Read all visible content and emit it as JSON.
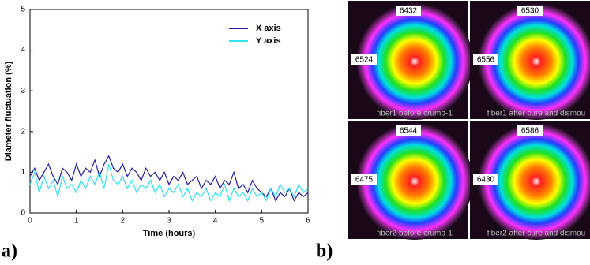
{
  "chart_data": {
    "type": "line",
    "xlabel": "Time (hours)",
    "ylabel": "Diameter fluctuation (%)",
    "x": [
      0,
      0.1,
      0.2,
      0.3,
      0.4,
      0.5,
      0.6,
      0.7,
      0.8,
      0.9,
      1,
      1.1,
      1.2,
      1.3,
      1.4,
      1.5,
      1.6,
      1.7,
      1.8,
      1.9,
      2,
      2.1,
      2.2,
      2.3,
      2.4,
      2.5,
      2.6,
      2.7,
      2.8,
      2.9,
      3,
      3.1,
      3.2,
      3.3,
      3.4,
      3.5,
      3.6,
      3.7,
      3.8,
      3.9,
      4,
      4.1,
      4.2,
      4.3,
      4.4,
      4.5,
      4.6,
      4.7,
      4.8,
      4.9,
      5,
      5.1,
      5.2,
      5.3,
      5.4,
      5.5,
      5.6,
      5.7,
      5.8,
      5.9,
      6
    ],
    "series": [
      {
        "name": "X axis",
        "color": "#1f1fa0",
        "values": [
          0.9,
          1.1,
          0.8,
          1.0,
          1.2,
          0.9,
          0.7,
          1.1,
          1.0,
          0.8,
          1.2,
          0.9,
          1.1,
          1.0,
          1.3,
          0.9,
          1.2,
          1.4,
          1.1,
          1.0,
          1.2,
          0.9,
          1.1,
          1.0,
          0.8,
          1.1,
          0.9,
          1.0,
          0.8,
          1.0,
          0.7,
          0.9,
          0.8,
          1.0,
          0.7,
          0.8,
          0.9,
          0.6,
          0.8,
          0.7,
          0.9,
          0.6,
          0.8,
          0.7,
          1.0,
          0.6,
          0.7,
          0.5,
          0.8,
          0.6,
          0.5,
          0.4,
          0.6,
          0.3,
          0.5,
          0.4,
          0.6,
          0.3,
          0.5,
          0.4,
          0.5
        ]
      },
      {
        "name": "Y axis",
        "color": "#33e0f0",
        "values": [
          0.7,
          1.0,
          0.5,
          0.9,
          0.6,
          0.8,
          0.4,
          0.9,
          0.6,
          0.7,
          0.5,
          0.8,
          0.6,
          0.9,
          0.7,
          1.0,
          0.6,
          1.2,
          0.8,
          0.7,
          0.9,
          0.6,
          0.8,
          0.5,
          0.7,
          0.6,
          0.8,
          0.5,
          0.7,
          0.4,
          0.6,
          0.5,
          0.7,
          0.4,
          0.6,
          0.3,
          0.5,
          0.4,
          0.6,
          0.3,
          0.5,
          0.4,
          0.7,
          0.3,
          0.6,
          0.4,
          0.5,
          0.3,
          0.6,
          0.4,
          0.5,
          0.3,
          0.6,
          0.4,
          0.7,
          0.5,
          0.6,
          0.4,
          0.7,
          0.5,
          0.6
        ]
      }
    ],
    "xlim": [
      0,
      6
    ],
    "xticks": [
      0,
      1,
      2,
      3,
      4,
      5,
      6
    ],
    "ylim": [
      0,
      5
    ],
    "yticks": [
      0,
      1,
      2,
      3,
      4,
      5
    ],
    "legend": "top-right"
  },
  "panels": [
    "a)",
    "b)"
  ],
  "images": [
    {
      "top_label": "6432",
      "left_label": "6524",
      "caption": "fiber1 before crump-1"
    },
    {
      "top_label": "6530",
      "left_label": "6556",
      "caption": "fiber1 after cure and dismou"
    },
    {
      "top_label": "6544",
      "left_label": "6475",
      "caption": "fiber2 before crump-1"
    },
    {
      "top_label": "6586",
      "left_label": "6430",
      "caption": "fiber2 after cure and dismou"
    }
  ]
}
